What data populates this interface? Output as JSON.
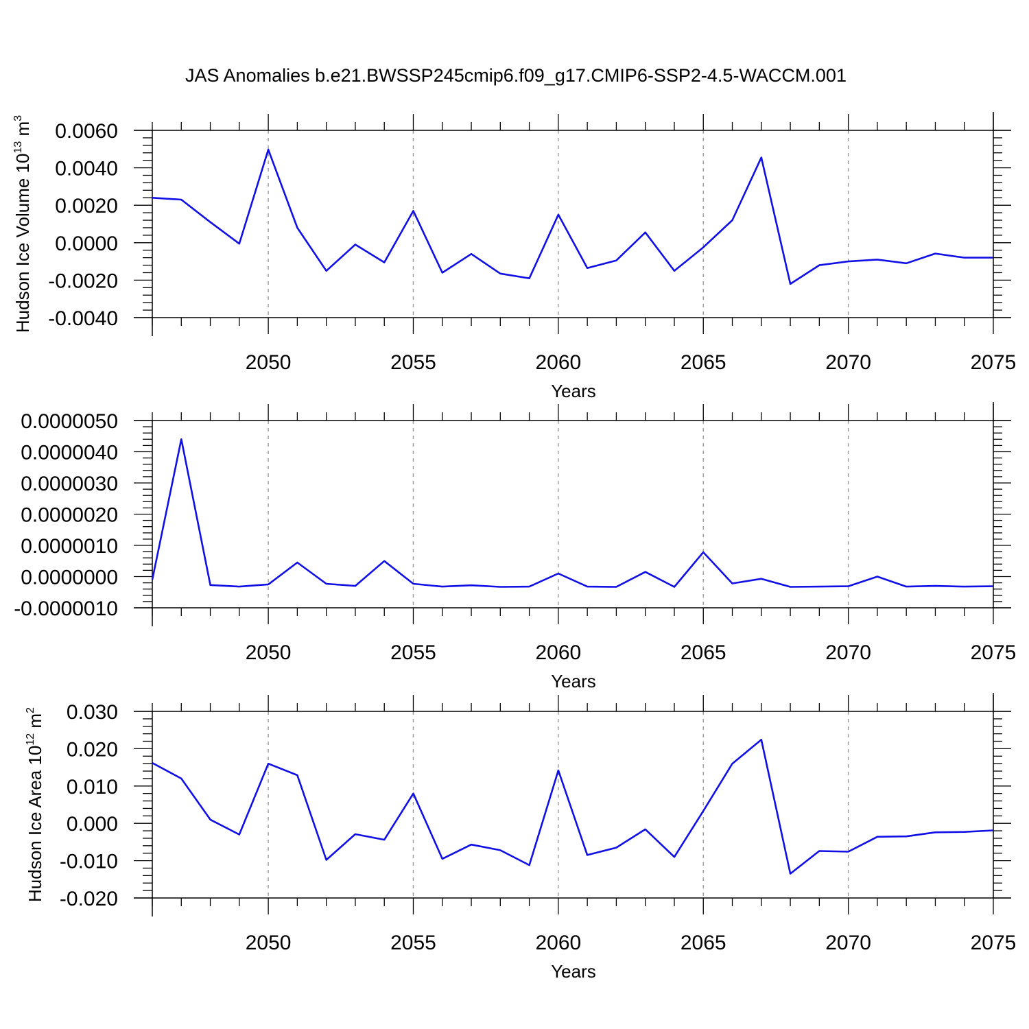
{
  "figure": {
    "title": "JAS Anomalies b.e21.BWSSP245cmip6.f09_g17.CMIP6-SSP2-4.5-WACCM.001"
  },
  "line_color": "#1010e6",
  "chart_data": [
    {
      "type": "line",
      "xlabel": "Years",
      "ylabel": "Hudson Ice Volume 10",
      "ylabel_exp": "13",
      "ylabel_unit": "m",
      "ylabel_unit_exp": "3",
      "xlim": [
        2046,
        2075
      ],
      "ylim": [
        -0.004,
        0.006
      ],
      "xticks": [
        2050,
        2055,
        2060,
        2065,
        2070,
        2075
      ],
      "yticks": [
        -0.004,
        -0.002,
        0.0,
        0.002,
        0.004,
        0.006
      ],
      "ytick_labels": [
        "-0.0040",
        "-0.0020",
        "0.0000",
        "0.0020",
        "0.0040",
        "0.0060"
      ],
      "grid": "x-major-dashed",
      "x": [
        2046,
        2047,
        2048,
        2049,
        2050,
        2051,
        2052,
        2053,
        2054,
        2055,
        2056,
        2057,
        2058,
        2059,
        2060,
        2061,
        2062,
        2063,
        2064,
        2065,
        2066,
        2067,
        2068,
        2069,
        2070,
        2071,
        2072,
        2073,
        2074,
        2075
      ],
      "y": [
        0.0024,
        0.0023,
        0.0011,
        -5e-05,
        0.00497,
        0.0008,
        -0.0015,
        -0.0001,
        -0.00105,
        0.0017,
        -0.0016,
        -0.0006,
        -0.00165,
        -0.0019,
        0.0015,
        -0.00135,
        -0.00095,
        0.00055,
        -0.0015,
        -0.00025,
        0.0012,
        0.00455,
        -0.0022,
        -0.0012,
        -0.001,
        -0.0009,
        -0.0011,
        -0.00058,
        -0.0008,
        -0.0008
      ]
    },
    {
      "type": "line",
      "xlabel": "Years",
      "ylabel": "",
      "xlim": [
        2046,
        2075
      ],
      "ylim": [
        -1e-06,
        5e-06
      ],
      "xticks": [
        2050,
        2055,
        2060,
        2065,
        2070,
        2075
      ],
      "yticks": [
        -1e-06,
        0.0,
        1e-06,
        2e-06,
        3e-06,
        4e-06,
        5e-06
      ],
      "ytick_labels": [
        "-0.0000010",
        "0.0000000",
        "0.0000010",
        "0.0000020",
        "0.0000030",
        "0.0000040",
        "0.0000050"
      ],
      "grid": "x-major-dashed",
      "x": [
        2046,
        2047,
        2048,
        2049,
        2050,
        2051,
        2052,
        2053,
        2054,
        2055,
        2056,
        2057,
        2058,
        2059,
        2060,
        2061,
        2062,
        2063,
        2064,
        2065,
        2066,
        2067,
        2068,
        2069,
        2070,
        2071,
        2072,
        2073,
        2074,
        2075
      ],
      "y": [
        -1e-07,
        4.4e-06,
        -2.7e-07,
        -3.2e-07,
        -2.5e-07,
        4.5e-07,
        -2.3e-07,
        -3e-07,
        5e-07,
        -2.3e-07,
        -3.2e-07,
        -2.8e-07,
        -3.3e-07,
        -3.2e-07,
        1e-07,
        -3.2e-07,
        -3.3e-07,
        1.5e-07,
        -3.3e-07,
        7.8e-07,
        -2.2e-07,
        -7e-08,
        -3.3e-07,
        -3.2e-07,
        -3.1e-07,
        0.0,
        -3.2e-07,
        -3e-07,
        -3.2e-07,
        -3.1e-07
      ]
    },
    {
      "type": "line",
      "xlabel": "Years",
      "ylabel": "Hudson Ice Area 10",
      "ylabel_exp": "12",
      "ylabel_unit": "m",
      "ylabel_unit_exp": "2",
      "xlim": [
        2046,
        2075
      ],
      "ylim": [
        -0.02,
        0.03
      ],
      "xticks": [
        2050,
        2055,
        2060,
        2065,
        2070,
        2075
      ],
      "yticks": [
        -0.02,
        -0.01,
        0.0,
        0.01,
        0.02,
        0.03
      ],
      "ytick_labels": [
        "-0.020",
        "-0.010",
        "0.000",
        "0.010",
        "0.020",
        "0.030"
      ],
      "grid": "x-major-dashed",
      "x": [
        2046,
        2047,
        2048,
        2049,
        2050,
        2051,
        2052,
        2053,
        2054,
        2055,
        2056,
        2057,
        2058,
        2059,
        2060,
        2061,
        2062,
        2063,
        2064,
        2065,
        2066,
        2067,
        2068,
        2069,
        2070,
        2071,
        2072,
        2073,
        2074,
        2075
      ],
      "y": [
        0.0162,
        0.012,
        0.001,
        -0.003,
        0.016,
        0.0129,
        -0.0098,
        -0.0029,
        -0.0044,
        0.008,
        -0.0095,
        -0.0057,
        -0.0072,
        -0.0112,
        0.0142,
        -0.0085,
        -0.0065,
        -0.0016,
        -0.009,
        0.0033,
        0.016,
        0.0224,
        -0.0135,
        -0.0074,
        -0.0076,
        -0.0036,
        -0.0035,
        -0.0024,
        -0.0023,
        -0.0019
      ]
    }
  ]
}
